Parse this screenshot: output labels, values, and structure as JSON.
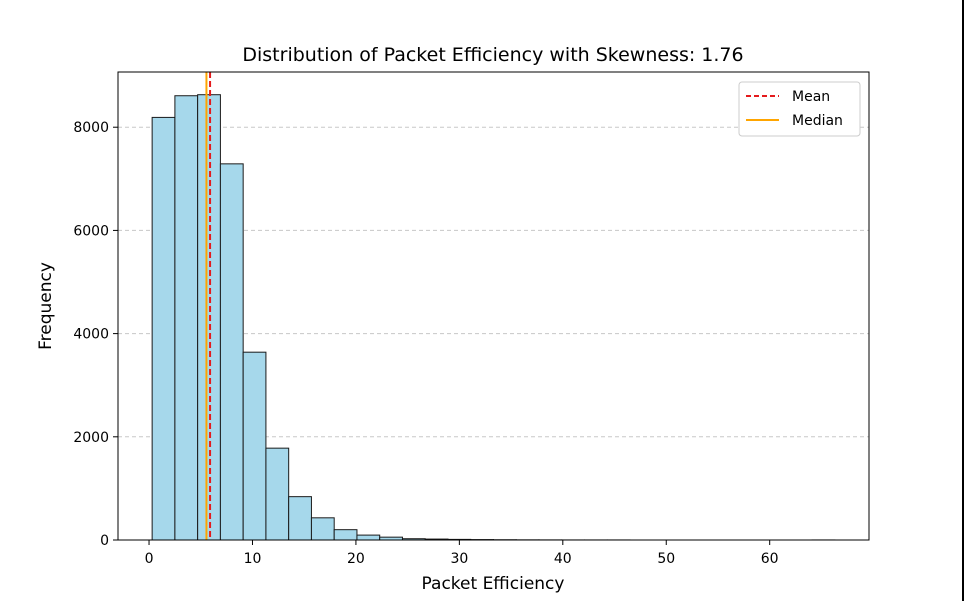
{
  "chart_data": {
    "type": "bar",
    "title": "Distribution of Packet Efficiency with Skewness: 1.76",
    "xlabel": "Packet Efficiency",
    "ylabel": "Frequency",
    "xlim": [
      -3.0,
      69.6
    ],
    "ylim": [
      0,
      9070
    ],
    "xticks": [
      0,
      10,
      20,
      30,
      40,
      50,
      60
    ],
    "yticks": [
      0,
      2000,
      4000,
      6000,
      8000
    ],
    "grid": {
      "axis": "y",
      "style": "dashed"
    },
    "legend_position": "upper right",
    "bins": {
      "edges": [
        0.3,
        2.5,
        4.7,
        6.9,
        9.1,
        11.3,
        13.5,
        15.7,
        17.9,
        20.1,
        22.3,
        24.5,
        26.7,
        28.9,
        31.1,
        33.3,
        35.5,
        37.7,
        39.9,
        42.1,
        44.3,
        46.5,
        48.7,
        50.9,
        53.1,
        55.3,
        57.5,
        59.7,
        61.9,
        64.1,
        66.3
      ],
      "counts": [
        8190,
        8610,
        8630,
        7290,
        3640,
        1780,
        840,
        430,
        200,
        95,
        55,
        25,
        18,
        12,
        8,
        5,
        3,
        2,
        1,
        1,
        1,
        0,
        0,
        0,
        0,
        0,
        0,
        0,
        0,
        1
      ]
    },
    "lines": [
      {
        "name": "Mean",
        "x": 5.9,
        "color": "#e41a1c",
        "style": "dashed"
      },
      {
        "name": "Median",
        "x": 5.55,
        "color": "#ffa500",
        "style": "solid"
      }
    ],
    "colors": {
      "bar_fill": "#a6d8eb",
      "bar_edge": "#1a1a1a",
      "grid": "#c8c8c8"
    }
  }
}
